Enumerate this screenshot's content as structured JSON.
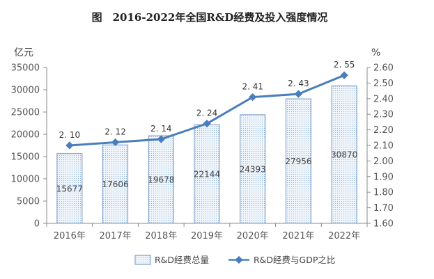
{
  "chart_data": {
    "type": "bar",
    "title": "图　2016-2022年全国R&D经费及投入强度情况",
    "categories": [
      "2016年",
      "2017年",
      "2018年",
      "2019年",
      "2020年",
      "2021年",
      "2022年"
    ],
    "series": [
      {
        "name": "R&D经费总量",
        "type": "bar",
        "axis": "left",
        "values": [
          15677,
          17606,
          19678,
          22144,
          24393,
          27956,
          30870
        ],
        "labels": [
          "15677",
          "17606",
          "19678",
          "22144",
          "24393",
          "27956",
          "30870"
        ]
      },
      {
        "name": "R&D经费与GDP之比",
        "type": "line",
        "axis": "right",
        "values": [
          2.1,
          2.12,
          2.14,
          2.24,
          2.41,
          2.43,
          2.55
        ],
        "labels": [
          "2. 10",
          "2. 12",
          "2. 14",
          "2. 24",
          "2. 41",
          "2. 43",
          "2. 55"
        ]
      }
    ],
    "y_left": {
      "unit": "亿元",
      "range": [
        0,
        35000
      ],
      "ticks": [
        "0",
        "5000",
        "10000",
        "15000",
        "20000",
        "25000",
        "30000",
        "35000"
      ]
    },
    "y_right": {
      "unit": "%",
      "range": [
        1.6,
        2.6
      ],
      "ticks": [
        "1.60",
        "1.70",
        "1.80",
        "1.90",
        "2.00",
        "2.10",
        "2.20",
        "2.30",
        "2.40",
        "2.50",
        "2.60"
      ]
    },
    "grid": false,
    "legend_position": "bottom",
    "colors": {
      "bar_fill": "#eef4fa",
      "bar_pattern": "#7fa7cf",
      "bar_edge": "#6f98c6",
      "line": "#4a7ebb",
      "axis": "#888888"
    }
  }
}
